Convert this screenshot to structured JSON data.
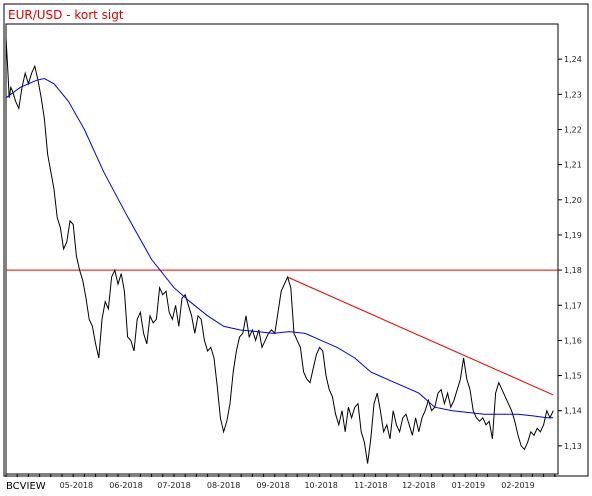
{
  "source_label": "BCVIEW",
  "colors": {
    "price": "#000000",
    "moving_average": "#0000dd",
    "trendline": "#ee0000",
    "title": "#dd0000",
    "frame": "#000000"
  },
  "chart_data": {
    "type": "line",
    "title": "EUR/USD - kort sigt",
    "xlabel": "",
    "ylabel": "",
    "ylim": [
      1.122,
      1.25
    ],
    "y_ticks": [
      "1,13",
      "1,14",
      "1,15",
      "1,16",
      "1,17",
      "1,18",
      "1,19",
      "1,20",
      "1,21",
      "1,22",
      "1,23",
      "1,24"
    ],
    "x_tick_labels": [
      "05-2018",
      "06-2018",
      "07-2018",
      "08-2018",
      "09-2018",
      "10-2018",
      "11-2018",
      "12-2018",
      "01-2019",
      "02-2019"
    ],
    "x_range": [
      "2018-04-01",
      "2019-03-12"
    ],
    "grid": false,
    "series": [
      {
        "kind": "price",
        "points": [
          [
            "2018-04-01",
            1.246
          ],
          [
            "2018-04-02",
            1.238
          ],
          [
            "2018-04-03",
            1.229
          ],
          [
            "2018-04-04",
            1.232
          ],
          [
            "2018-04-05",
            1.231
          ],
          [
            "2018-04-07",
            1.228
          ],
          [
            "2018-04-09",
            1.226
          ],
          [
            "2018-04-11",
            1.232
          ],
          [
            "2018-04-13",
            1.236
          ],
          [
            "2018-04-15",
            1.233
          ],
          [
            "2018-04-17",
            1.236
          ],
          [
            "2018-04-19",
            1.238
          ],
          [
            "2018-04-21",
            1.234
          ],
          [
            "2018-04-23",
            1.229
          ],
          [
            "2018-04-25",
            1.223
          ],
          [
            "2018-04-27",
            1.213
          ],
          [
            "2018-04-29",
            1.208
          ],
          [
            "2018-05-01",
            1.203
          ],
          [
            "2018-05-03",
            1.195
          ],
          [
            "2018-05-05",
            1.192
          ],
          [
            "2018-05-07",
            1.186
          ],
          [
            "2018-05-09",
            1.188
          ],
          [
            "2018-05-11",
            1.194
          ],
          [
            "2018-05-13",
            1.193
          ],
          [
            "2018-05-15",
            1.184
          ],
          [
            "2018-05-17",
            1.18
          ],
          [
            "2018-05-19",
            1.177
          ],
          [
            "2018-05-21",
            1.172
          ],
          [
            "2018-05-23",
            1.166
          ],
          [
            "2018-05-25",
            1.164
          ],
          [
            "2018-05-27",
            1.159
          ],
          [
            "2018-05-29",
            1.155
          ],
          [
            "2018-05-31",
            1.166
          ],
          [
            "2018-06-02",
            1.171
          ],
          [
            "2018-06-04",
            1.169
          ],
          [
            "2018-06-06",
            1.178
          ],
          [
            "2018-06-08",
            1.18
          ],
          [
            "2018-06-10",
            1.176
          ],
          [
            "2018-06-12",
            1.179
          ],
          [
            "2018-06-14",
            1.174
          ],
          [
            "2018-06-16",
            1.161
          ],
          [
            "2018-06-18",
            1.16
          ],
          [
            "2018-06-20",
            1.157
          ],
          [
            "2018-06-22",
            1.166
          ],
          [
            "2018-06-24",
            1.168
          ],
          [
            "2018-06-26",
            1.162
          ],
          [
            "2018-06-28",
            1.159
          ],
          [
            "2018-06-30",
            1.167
          ],
          [
            "2018-07-02",
            1.165
          ],
          [
            "2018-07-04",
            1.166
          ],
          [
            "2018-07-06",
            1.175
          ],
          [
            "2018-07-08",
            1.173
          ],
          [
            "2018-07-10",
            1.174
          ],
          [
            "2018-07-12",
            1.168
          ],
          [
            "2018-07-14",
            1.166
          ],
          [
            "2018-07-16",
            1.17
          ],
          [
            "2018-07-18",
            1.164
          ],
          [
            "2018-07-20",
            1.172
          ],
          [
            "2018-07-22",
            1.173
          ],
          [
            "2018-07-24",
            1.17
          ],
          [
            "2018-07-26",
            1.167
          ],
          [
            "2018-07-28",
            1.162
          ],
          [
            "2018-07-30",
            1.167
          ],
          [
            "2018-08-01",
            1.166
          ],
          [
            "2018-08-03",
            1.16
          ],
          [
            "2018-08-05",
            1.157
          ],
          [
            "2018-08-07",
            1.158
          ],
          [
            "2018-08-09",
            1.155
          ],
          [
            "2018-08-11",
            1.147
          ],
          [
            "2018-08-13",
            1.138
          ],
          [
            "2018-08-15",
            1.134
          ],
          [
            "2018-08-17",
            1.137
          ],
          [
            "2018-08-19",
            1.142
          ],
          [
            "2018-08-21",
            1.151
          ],
          [
            "2018-08-23",
            1.157
          ],
          [
            "2018-08-25",
            1.161
          ],
          [
            "2018-08-27",
            1.162
          ],
          [
            "2018-08-29",
            1.167
          ],
          [
            "2018-08-31",
            1.161
          ],
          [
            "2018-09-02",
            1.163
          ],
          [
            "2018-09-04",
            1.16
          ],
          [
            "2018-09-06",
            1.163
          ],
          [
            "2018-09-08",
            1.158
          ],
          [
            "2018-09-10",
            1.16
          ],
          [
            "2018-09-12",
            1.162
          ],
          [
            "2018-09-14",
            1.163
          ],
          [
            "2018-09-16",
            1.162
          ],
          [
            "2018-09-18",
            1.168
          ],
          [
            "2018-09-20",
            1.174
          ],
          [
            "2018-09-22",
            1.176
          ],
          [
            "2018-09-24",
            1.178
          ],
          [
            "2018-09-26",
            1.175
          ],
          [
            "2018-09-28",
            1.162
          ],
          [
            "2018-09-30",
            1.16
          ],
          [
            "2018-10-02",
            1.158
          ],
          [
            "2018-10-04",
            1.151
          ],
          [
            "2018-10-06",
            1.149
          ],
          [
            "2018-10-08",
            1.148
          ],
          [
            "2018-10-10",
            1.152
          ],
          [
            "2018-10-12",
            1.156
          ],
          [
            "2018-10-14",
            1.158
          ],
          [
            "2018-10-16",
            1.157
          ],
          [
            "2018-10-18",
            1.15
          ],
          [
            "2018-10-20",
            1.146
          ],
          [
            "2018-10-22",
            1.144
          ],
          [
            "2018-10-24",
            1.139
          ],
          [
            "2018-10-26",
            1.136
          ],
          [
            "2018-10-28",
            1.14
          ],
          [
            "2018-10-30",
            1.134
          ],
          [
            "2018-11-01",
            1.141
          ],
          [
            "2018-11-03",
            1.138
          ],
          [
            "2018-11-05",
            1.141
          ],
          [
            "2018-11-07",
            1.142
          ],
          [
            "2018-11-09",
            1.134
          ],
          [
            "2018-11-11",
            1.131
          ],
          [
            "2018-11-13",
            1.125
          ],
          [
            "2018-11-15",
            1.132
          ],
          [
            "2018-11-17",
            1.142
          ],
          [
            "2018-11-19",
            1.145
          ],
          [
            "2018-11-21",
            1.14
          ],
          [
            "2018-11-23",
            1.134
          ],
          [
            "2018-11-25",
            1.136
          ],
          [
            "2018-11-27",
            1.132
          ],
          [
            "2018-11-29",
            1.14
          ],
          [
            "2018-12-01",
            1.136
          ],
          [
            "2018-12-03",
            1.134
          ],
          [
            "2018-12-05",
            1.138
          ],
          [
            "2018-12-07",
            1.139
          ],
          [
            "2018-12-09",
            1.136
          ],
          [
            "2018-12-11",
            1.133
          ],
          [
            "2018-12-13",
            1.138
          ],
          [
            "2018-12-15",
            1.134
          ],
          [
            "2018-12-17",
            1.138
          ],
          [
            "2018-12-19",
            1.14
          ],
          [
            "2018-12-21",
            1.143
          ],
          [
            "2018-12-23",
            1.14
          ],
          [
            "2018-12-25",
            1.141
          ],
          [
            "2018-12-27",
            1.145
          ],
          [
            "2018-12-29",
            1.146
          ],
          [
            "2018-12-31",
            1.142
          ],
          [
            "2019-01-02",
            1.145
          ],
          [
            "2019-01-04",
            1.141
          ],
          [
            "2019-01-06",
            1.143
          ],
          [
            "2019-01-08",
            1.146
          ],
          [
            "2019-01-10",
            1.149
          ],
          [
            "2019-01-12",
            1.155
          ],
          [
            "2019-01-14",
            1.149
          ],
          [
            "2019-01-16",
            1.146
          ],
          [
            "2019-01-18",
            1.14
          ],
          [
            "2019-01-20",
            1.138
          ],
          [
            "2019-01-22",
            1.137
          ],
          [
            "2019-01-24",
            1.138
          ],
          [
            "2019-01-26",
            1.136
          ],
          [
            "2019-01-28",
            1.137
          ],
          [
            "2019-01-30",
            1.132
          ],
          [
            "2019-02-01",
            1.145
          ],
          [
            "2019-02-03",
            1.148
          ],
          [
            "2019-02-05",
            1.146
          ],
          [
            "2019-02-07",
            1.144
          ],
          [
            "2019-02-09",
            1.142
          ],
          [
            "2019-02-11",
            1.14
          ],
          [
            "2019-02-13",
            1.137
          ],
          [
            "2019-02-15",
            1.133
          ],
          [
            "2019-02-17",
            1.13
          ],
          [
            "2019-02-19",
            1.129
          ],
          [
            "2019-02-21",
            1.131
          ],
          [
            "2019-02-23",
            1.134
          ],
          [
            "2019-02-25",
            1.133
          ],
          [
            "2019-02-27",
            1.135
          ],
          [
            "2019-03-01",
            1.134
          ],
          [
            "2019-03-03",
            1.136
          ],
          [
            "2019-03-05",
            1.14
          ],
          [
            "2019-03-07",
            1.138
          ],
          [
            "2019-03-09",
            1.14
          ]
        ]
      },
      {
        "kind": "moving_average",
        "points": [
          [
            "2018-04-01",
            1.229
          ],
          [
            "2018-04-10",
            1.232
          ],
          [
            "2018-04-20",
            1.234
          ],
          [
            "2018-04-25",
            1.2345
          ],
          [
            "2018-05-01",
            1.233
          ],
          [
            "2018-05-10",
            1.228
          ],
          [
            "2018-05-20",
            1.22
          ],
          [
            "2018-06-01",
            1.208
          ],
          [
            "2018-06-15",
            1.196
          ],
          [
            "2018-07-01",
            1.183
          ],
          [
            "2018-07-15",
            1.175
          ],
          [
            "2018-07-25",
            1.171
          ],
          [
            "2018-08-05",
            1.167
          ],
          [
            "2018-08-15",
            1.164
          ],
          [
            "2018-08-25",
            1.163
          ],
          [
            "2018-09-05",
            1.1625
          ],
          [
            "2018-09-15",
            1.162
          ],
          [
            "2018-09-25",
            1.1625
          ],
          [
            "2018-10-05",
            1.162
          ],
          [
            "2018-10-15",
            1.16
          ],
          [
            "2018-10-25",
            1.158
          ],
          [
            "2018-11-05",
            1.155
          ],
          [
            "2018-11-15",
            1.151
          ],
          [
            "2018-11-25",
            1.149
          ],
          [
            "2018-12-05",
            1.147
          ],
          [
            "2018-12-15",
            1.145
          ],
          [
            "2018-12-25",
            1.141
          ],
          [
            "2019-01-05",
            1.14
          ],
          [
            "2019-01-15",
            1.1395
          ],
          [
            "2019-01-25",
            1.139
          ],
          [
            "2019-02-05",
            1.139
          ],
          [
            "2019-02-15",
            1.139
          ],
          [
            "2019-02-25",
            1.1385
          ],
          [
            "2019-03-05",
            1.138
          ],
          [
            "2019-03-09",
            1.138
          ]
        ]
      }
    ],
    "reference_lines": [
      {
        "kind": "horizontal",
        "y": 1.18
      },
      {
        "kind": "trendline",
        "from": [
          "2018-09-24",
          1.178
        ],
        "to": [
          "2019-03-09",
          1.1445
        ]
      }
    ]
  }
}
